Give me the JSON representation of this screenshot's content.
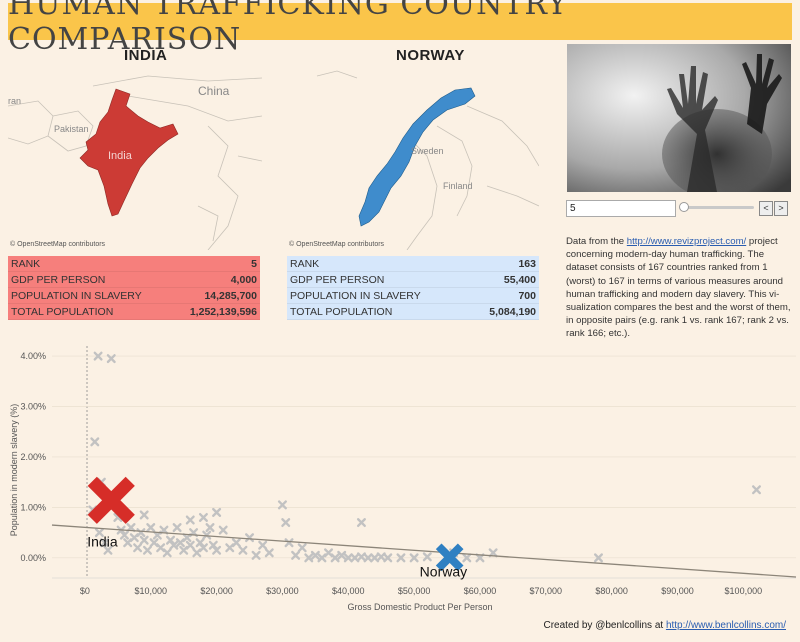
{
  "title": "HUMAN TRAFFICKING COUNTRY COMPARISON",
  "india": {
    "heading": "INDIA",
    "map_labels": {
      "china": "China",
      "pakistan": "Pakistan",
      "country": "India",
      "partial": "ran"
    },
    "osm_credit": "© OpenStreetMap contributors",
    "stats": [
      {
        "label": "RANK",
        "value": "5"
      },
      {
        "label": "GDP PER PERSON",
        "value": "4,000"
      },
      {
        "label": "POPULATION IN SLAVERY",
        "value": "14,285,700"
      },
      {
        "label": "TOTAL POPULATION",
        "value": "1,252,139,596"
      }
    ]
  },
  "norway": {
    "heading": "NORWAY",
    "map_labels": {
      "sweden": "Sweden",
      "finland": "Finland"
    },
    "osm_credit": "© OpenStreetMap contributors",
    "stats": [
      {
        "label": "RANK",
        "value": "163"
      },
      {
        "label": "GDP PER PERSON",
        "value": "55,400"
      },
      {
        "label": "POPULATION IN SLAVERY",
        "value": "700"
      },
      {
        "label": "TOTAL POPULATION",
        "value": "5,084,190"
      }
    ]
  },
  "slider": {
    "value": "5",
    "prev": "<",
    "next": ">"
  },
  "description": {
    "before_link": "Data from the ",
    "link": "http://www.revizproject.com/",
    "after_link": " project concerning modern-day human trafficking. The dataset consists of 167 countries ranked from 1 (worst) to 167 in terms of various measures around human trafficking and modern day slavery. This vi-sualization compares the best and the worst of them, in opposite pairs (e.g. rank 1 vs. rank 167; rank 2 vs. rank 166; etc.)."
  },
  "credit": {
    "text": "Created by @benlcollins at ",
    "link": "http://www.benlcollins.com/"
  },
  "colors": {
    "india": "#d62d28",
    "norway": "#2f80c2",
    "others": "#c2c2c2",
    "trend": "#8c8579"
  },
  "chart_data": {
    "type": "scatter",
    "xlabel": "Gross Domestic Product Per Person",
    "ylabel": "Population in modern slavery (%)",
    "xlim": [
      -5000,
      108000
    ],
    "ylim": [
      -0.4,
      4.2
    ],
    "x_ticks": [
      0,
      10000,
      20000,
      30000,
      40000,
      50000,
      60000,
      70000,
      80000,
      90000,
      100000
    ],
    "x_tick_labels": [
      "$0",
      "$10,000",
      "$20,000",
      "$30,000",
      "$40,000",
      "$50,000",
      "$60,000",
      "$70,000",
      "$80,000",
      "$90,000",
      "$100,000"
    ],
    "y_ticks": [
      0,
      1,
      2,
      3,
      4
    ],
    "y_tick_labels": [
      "0.00%",
      "1.00%",
      "2.00%",
      "3.00%",
      "4.00%"
    ],
    "trend_line": {
      "x": [
        -5000,
        108000
      ],
      "y": [
        0.65,
        -0.38
      ]
    },
    "highlight": [
      {
        "name": "India",
        "x": 4000,
        "y": 1.14
      },
      {
        "name": "Norway",
        "x": 55400,
        "y": 0.01
      }
    ],
    "points": [
      {
        "x": 2000,
        "y": 4.0
      },
      {
        "x": 4000,
        "y": 3.95
      },
      {
        "x": 1500,
        "y": 2.3
      },
      {
        "x": 2500,
        "y": 1.5
      },
      {
        "x": 1200,
        "y": 0.95
      },
      {
        "x": 2200,
        "y": 0.5
      },
      {
        "x": 3000,
        "y": 0.3
      },
      {
        "x": 3500,
        "y": 0.15
      },
      {
        "x": 5000,
        "y": 0.8
      },
      {
        "x": 5500,
        "y": 0.55
      },
      {
        "x": 6000,
        "y": 0.45
      },
      {
        "x": 6500,
        "y": 0.3
      },
      {
        "x": 7000,
        "y": 0.6
      },
      {
        "x": 7500,
        "y": 0.4
      },
      {
        "x": 8000,
        "y": 0.2
      },
      {
        "x": 8500,
        "y": 0.5
      },
      {
        "x": 9000,
        "y": 0.35
      },
      {
        "x": 9500,
        "y": 0.15
      },
      {
        "x": 10000,
        "y": 0.6
      },
      {
        "x": 10500,
        "y": 0.3
      },
      {
        "x": 11000,
        "y": 0.45
      },
      {
        "x": 11500,
        "y": 0.2
      },
      {
        "x": 12000,
        "y": 0.55
      },
      {
        "x": 12500,
        "y": 0.1
      },
      {
        "x": 13000,
        "y": 0.35
      },
      {
        "x": 13500,
        "y": 0.25
      },
      {
        "x": 14000,
        "y": 0.6
      },
      {
        "x": 14500,
        "y": 0.3
      },
      {
        "x": 15000,
        "y": 0.15
      },
      {
        "x": 15500,
        "y": 0.4
      },
      {
        "x": 16000,
        "y": 0.25
      },
      {
        "x": 16500,
        "y": 0.5
      },
      {
        "x": 17000,
        "y": 0.1
      },
      {
        "x": 17500,
        "y": 0.3
      },
      {
        "x": 18000,
        "y": 0.2
      },
      {
        "x": 18500,
        "y": 0.45
      },
      {
        "x": 19000,
        "y": 0.6
      },
      {
        "x": 19500,
        "y": 0.25
      },
      {
        "x": 20000,
        "y": 0.15
      },
      {
        "x": 21000,
        "y": 0.55
      },
      {
        "x": 22000,
        "y": 0.2
      },
      {
        "x": 23000,
        "y": 0.3
      },
      {
        "x": 24000,
        "y": 0.15
      },
      {
        "x": 25000,
        "y": 0.4
      },
      {
        "x": 26000,
        "y": 0.05
      },
      {
        "x": 27000,
        "y": 0.25
      },
      {
        "x": 28000,
        "y": 0.1
      },
      {
        "x": 30000,
        "y": 1.05
      },
      {
        "x": 30500,
        "y": 0.7
      },
      {
        "x": 31000,
        "y": 0.3
      },
      {
        "x": 32000,
        "y": 0.05
      },
      {
        "x": 33000,
        "y": 0.2
      },
      {
        "x": 34000,
        "y": 0.0
      },
      {
        "x": 35000,
        "y": 0.05
      },
      {
        "x": 36000,
        "y": 0.0
      },
      {
        "x": 37000,
        "y": 0.1
      },
      {
        "x": 38000,
        "y": 0.0
      },
      {
        "x": 39000,
        "y": 0.05
      },
      {
        "x": 40000,
        "y": 0.0
      },
      {
        "x": 41000,
        "y": 0.0
      },
      {
        "x": 42000,
        "y": 0.02
      },
      {
        "x": 43000,
        "y": 0.0
      },
      {
        "x": 44000,
        "y": 0.0
      },
      {
        "x": 45000,
        "y": 0.02
      },
      {
        "x": 46000,
        "y": 0.0
      },
      {
        "x": 42000,
        "y": 0.7
      },
      {
        "x": 20000,
        "y": 0.9
      },
      {
        "x": 18000,
        "y": 0.8
      },
      {
        "x": 16000,
        "y": 0.75
      },
      {
        "x": 9000,
        "y": 0.85
      },
      {
        "x": 48000,
        "y": 0.0
      },
      {
        "x": 50000,
        "y": 0.0
      },
      {
        "x": 52000,
        "y": 0.02
      },
      {
        "x": 56000,
        "y": 0.1
      },
      {
        "x": 58000,
        "y": 0.0
      },
      {
        "x": 60000,
        "y": 0.0
      },
      {
        "x": 62000,
        "y": 0.1
      },
      {
        "x": 78000,
        "y": 0.0
      },
      {
        "x": 102000,
        "y": 1.35
      }
    ]
  }
}
